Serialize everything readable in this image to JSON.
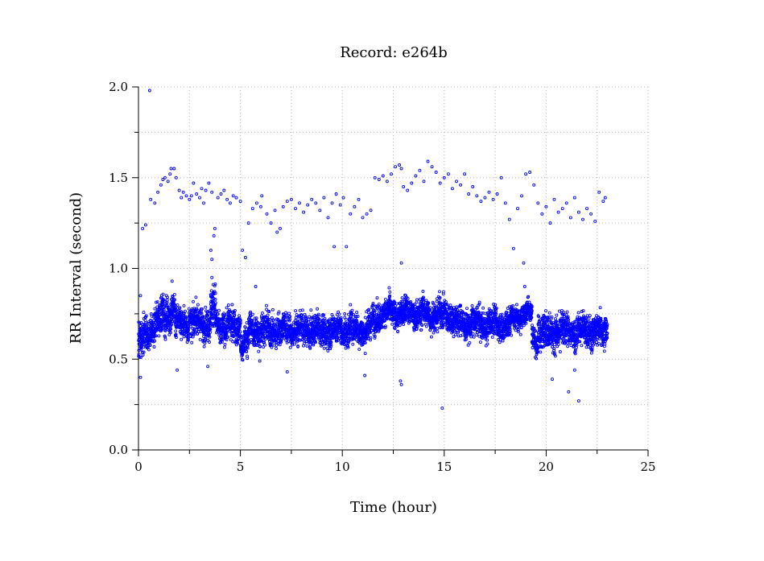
{
  "chart_data": {
    "type": "scatter",
    "title": "Record:  e264b",
    "xlabel": "Time (hour)",
    "ylabel": "RR Interval (second)",
    "xlim": [
      0,
      25
    ],
    "ylim": [
      0,
      2
    ],
    "xticks": [
      0,
      5,
      10,
      15,
      20,
      25
    ],
    "xtick_labels": [
      "0",
      "5",
      "10",
      "15",
      "20",
      "25"
    ],
    "yticks": [
      0,
      0.5,
      1,
      1.5,
      2
    ],
    "ytick_labels": [
      "0.0",
      "0.5",
      "1.0",
      "1.5",
      "2.0"
    ],
    "grid": true,
    "marker": "open-circle",
    "series_color": "#0000ff",
    "baseline_segments": [
      {
        "t": [
          0.0,
          0.3
        ],
        "mean": [
          0.58,
          0.62
        ],
        "spread": 0.05
      },
      {
        "t": [
          0.3,
          1.0
        ],
        "mean": [
          0.62,
          0.72
        ],
        "spread": 0.04
      },
      {
        "t": [
          1.0,
          1.8
        ],
        "mean": [
          0.72,
          0.78
        ],
        "spread": 0.05
      },
      {
        "t": [
          1.8,
          3.5
        ],
        "mean": [
          0.7,
          0.7
        ],
        "spread": 0.04
      },
      {
        "t": [
          3.5,
          3.8
        ],
        "mean": [
          0.74,
          0.8
        ],
        "spread": 0.06
      },
      {
        "t": [
          3.8,
          5.0
        ],
        "mean": [
          0.68,
          0.68
        ],
        "spread": 0.04
      },
      {
        "t": [
          5.0,
          5.4
        ],
        "mean": [
          0.58,
          0.6
        ],
        "spread": 0.04
      },
      {
        "t": [
          5.4,
          11.3
        ],
        "mean": [
          0.66,
          0.66
        ],
        "spread": 0.04
      },
      {
        "t": [
          11.3,
          11.8
        ],
        "mean": [
          0.68,
          0.74
        ],
        "spread": 0.04
      },
      {
        "t": [
          11.8,
          13.5
        ],
        "mean": [
          0.75,
          0.76
        ],
        "spread": 0.035
      },
      {
        "t": [
          13.5,
          15.5
        ],
        "mean": [
          0.75,
          0.74
        ],
        "spread": 0.04
      },
      {
        "t": [
          15.5,
          18.3
        ],
        "mean": [
          0.7,
          0.69
        ],
        "spread": 0.04
      },
      {
        "t": [
          18.3,
          19.3
        ],
        "mean": [
          0.72,
          0.76
        ],
        "spread": 0.03
      },
      {
        "t": [
          19.3,
          19.6
        ],
        "mean": [
          0.62,
          0.6
        ],
        "spread": 0.03
      },
      {
        "t": [
          19.6,
          23.0
        ],
        "mean": [
          0.65,
          0.66
        ],
        "spread": 0.045
      }
    ],
    "outliers": [
      [
        0.55,
        1.98
      ],
      [
        0.2,
        1.22
      ],
      [
        0.35,
        1.24
      ],
      [
        0.6,
        1.38
      ],
      [
        0.8,
        1.36
      ],
      [
        0.95,
        1.42
      ],
      [
        1.1,
        1.46
      ],
      [
        1.2,
        1.49
      ],
      [
        1.3,
        1.5
      ],
      [
        1.45,
        1.48
      ],
      [
        1.55,
        1.52
      ],
      [
        1.6,
        1.55
      ],
      [
        1.75,
        1.55
      ],
      [
        1.85,
        1.5
      ],
      [
        2.0,
        1.43
      ],
      [
        2.1,
        1.39
      ],
      [
        2.2,
        1.42
      ],
      [
        2.35,
        1.4
      ],
      [
        2.5,
        1.38
      ],
      [
        2.6,
        1.4
      ],
      [
        2.7,
        1.47
      ],
      [
        2.85,
        1.41
      ],
      [
        3.0,
        1.39
      ],
      [
        3.1,
        1.44
      ],
      [
        3.2,
        1.36
      ],
      [
        3.3,
        1.43
      ],
      [
        3.45,
        1.47
      ],
      [
        3.6,
        1.42
      ],
      [
        3.7,
        1.18
      ],
      [
        3.75,
        1.22
      ],
      [
        3.55,
        1.1
      ],
      [
        3.6,
        1.05
      ],
      [
        3.9,
        1.39
      ],
      [
        4.05,
        1.41
      ],
      [
        4.2,
        1.43
      ],
      [
        4.35,
        1.38
      ],
      [
        4.5,
        1.36
      ],
      [
        4.65,
        1.4
      ],
      [
        4.8,
        1.39
      ],
      [
        5.0,
        1.37
      ],
      [
        5.1,
        1.1
      ],
      [
        5.25,
        1.06
      ],
      [
        5.4,
        1.25
      ],
      [
        5.6,
        1.33
      ],
      [
        5.8,
        1.36
      ],
      [
        6.0,
        1.34
      ],
      [
        6.05,
        1.4
      ],
      [
        6.3,
        1.3
      ],
      [
        6.5,
        1.25
      ],
      [
        6.7,
        1.32
      ],
      [
        6.8,
        1.2
      ],
      [
        6.95,
        1.22
      ],
      [
        7.1,
        1.34
      ],
      [
        7.3,
        1.37
      ],
      [
        7.5,
        1.38
      ],
      [
        7.7,
        1.33
      ],
      [
        7.9,
        1.36
      ],
      [
        8.1,
        1.31
      ],
      [
        8.3,
        1.35
      ],
      [
        8.5,
        1.38
      ],
      [
        8.7,
        1.36
      ],
      [
        8.9,
        1.32
      ],
      [
        9.1,
        1.39
      ],
      [
        9.3,
        1.28
      ],
      [
        9.5,
        1.36
      ],
      [
        9.6,
        1.12
      ],
      [
        9.7,
        1.41
      ],
      [
        9.9,
        1.35
      ],
      [
        10.05,
        1.39
      ],
      [
        10.2,
        1.12
      ],
      [
        10.4,
        1.3
      ],
      [
        10.6,
        1.34
      ],
      [
        10.8,
        1.38
      ],
      [
        11.0,
        1.28
      ],
      [
        11.2,
        1.3
      ],
      [
        11.4,
        1.32
      ],
      [
        11.6,
        1.5
      ],
      [
        11.8,
        1.49
      ],
      [
        12.0,
        1.51
      ],
      [
        12.2,
        1.48
      ],
      [
        12.4,
        1.52
      ],
      [
        12.6,
        1.56
      ],
      [
        12.8,
        1.57
      ],
      [
        12.9,
        1.55
      ],
      [
        13.0,
        1.45
      ],
      [
        13.2,
        1.43
      ],
      [
        13.4,
        1.47
      ],
      [
        13.6,
        1.51
      ],
      [
        13.8,
        1.54
      ],
      [
        14.0,
        1.48
      ],
      [
        14.2,
        1.59
      ],
      [
        14.4,
        1.56
      ],
      [
        14.6,
        1.53
      ],
      [
        14.8,
        1.47
      ],
      [
        15.0,
        1.5
      ],
      [
        15.2,
        1.52
      ],
      [
        15.4,
        1.44
      ],
      [
        15.6,
        1.48
      ],
      [
        15.8,
        1.46
      ],
      [
        16.0,
        1.52
      ],
      [
        16.2,
        1.41
      ],
      [
        16.4,
        1.45
      ],
      [
        16.6,
        1.4
      ],
      [
        16.8,
        1.37
      ],
      [
        17.0,
        1.39
      ],
      [
        17.2,
        1.42
      ],
      [
        17.4,
        1.38
      ],
      [
        17.6,
        1.41
      ],
      [
        17.8,
        1.5
      ],
      [
        18.0,
        1.36
      ],
      [
        18.2,
        1.27
      ],
      [
        18.4,
        1.11
      ],
      [
        18.6,
        1.33
      ],
      [
        18.8,
        1.4
      ],
      [
        19.0,
        1.52
      ],
      [
        19.2,
        1.53
      ],
      [
        19.4,
        1.46
      ],
      [
        19.6,
        1.36
      ],
      [
        19.8,
        1.3
      ],
      [
        20.0,
        1.34
      ],
      [
        20.2,
        1.25
      ],
      [
        20.4,
        1.38
      ],
      [
        20.6,
        1.31
      ],
      [
        20.8,
        1.33
      ],
      [
        21.0,
        1.36
      ],
      [
        21.2,
        1.28
      ],
      [
        21.4,
        1.39
      ],
      [
        21.6,
        1.31
      ],
      [
        21.8,
        1.27
      ],
      [
        22.0,
        1.33
      ],
      [
        22.2,
        1.3
      ],
      [
        22.4,
        1.26
      ],
      [
        22.6,
        1.42
      ],
      [
        22.8,
        1.37
      ],
      [
        22.9,
        1.39
      ],
      [
        18.9,
        1.03
      ],
      [
        12.9,
        1.03
      ],
      [
        3.6,
        0.95
      ],
      [
        1.65,
        0.93
      ],
      [
        0.1,
        0.85
      ],
      [
        5.75,
        0.9
      ],
      [
        10.4,
        0.8
      ],
      [
        18.95,
        0.9
      ],
      [
        0.1,
        0.4
      ],
      [
        1.9,
        0.44
      ],
      [
        3.4,
        0.46
      ],
      [
        7.3,
        0.43
      ],
      [
        11.1,
        0.41
      ],
      [
        12.85,
        0.38
      ],
      [
        12.9,
        0.36
      ],
      [
        14.9,
        0.23
      ],
      [
        20.3,
        0.39
      ],
      [
        21.1,
        0.32
      ],
      [
        21.4,
        0.44
      ],
      [
        21.6,
        0.27
      ],
      [
        5.95,
        0.49
      ]
    ]
  }
}
